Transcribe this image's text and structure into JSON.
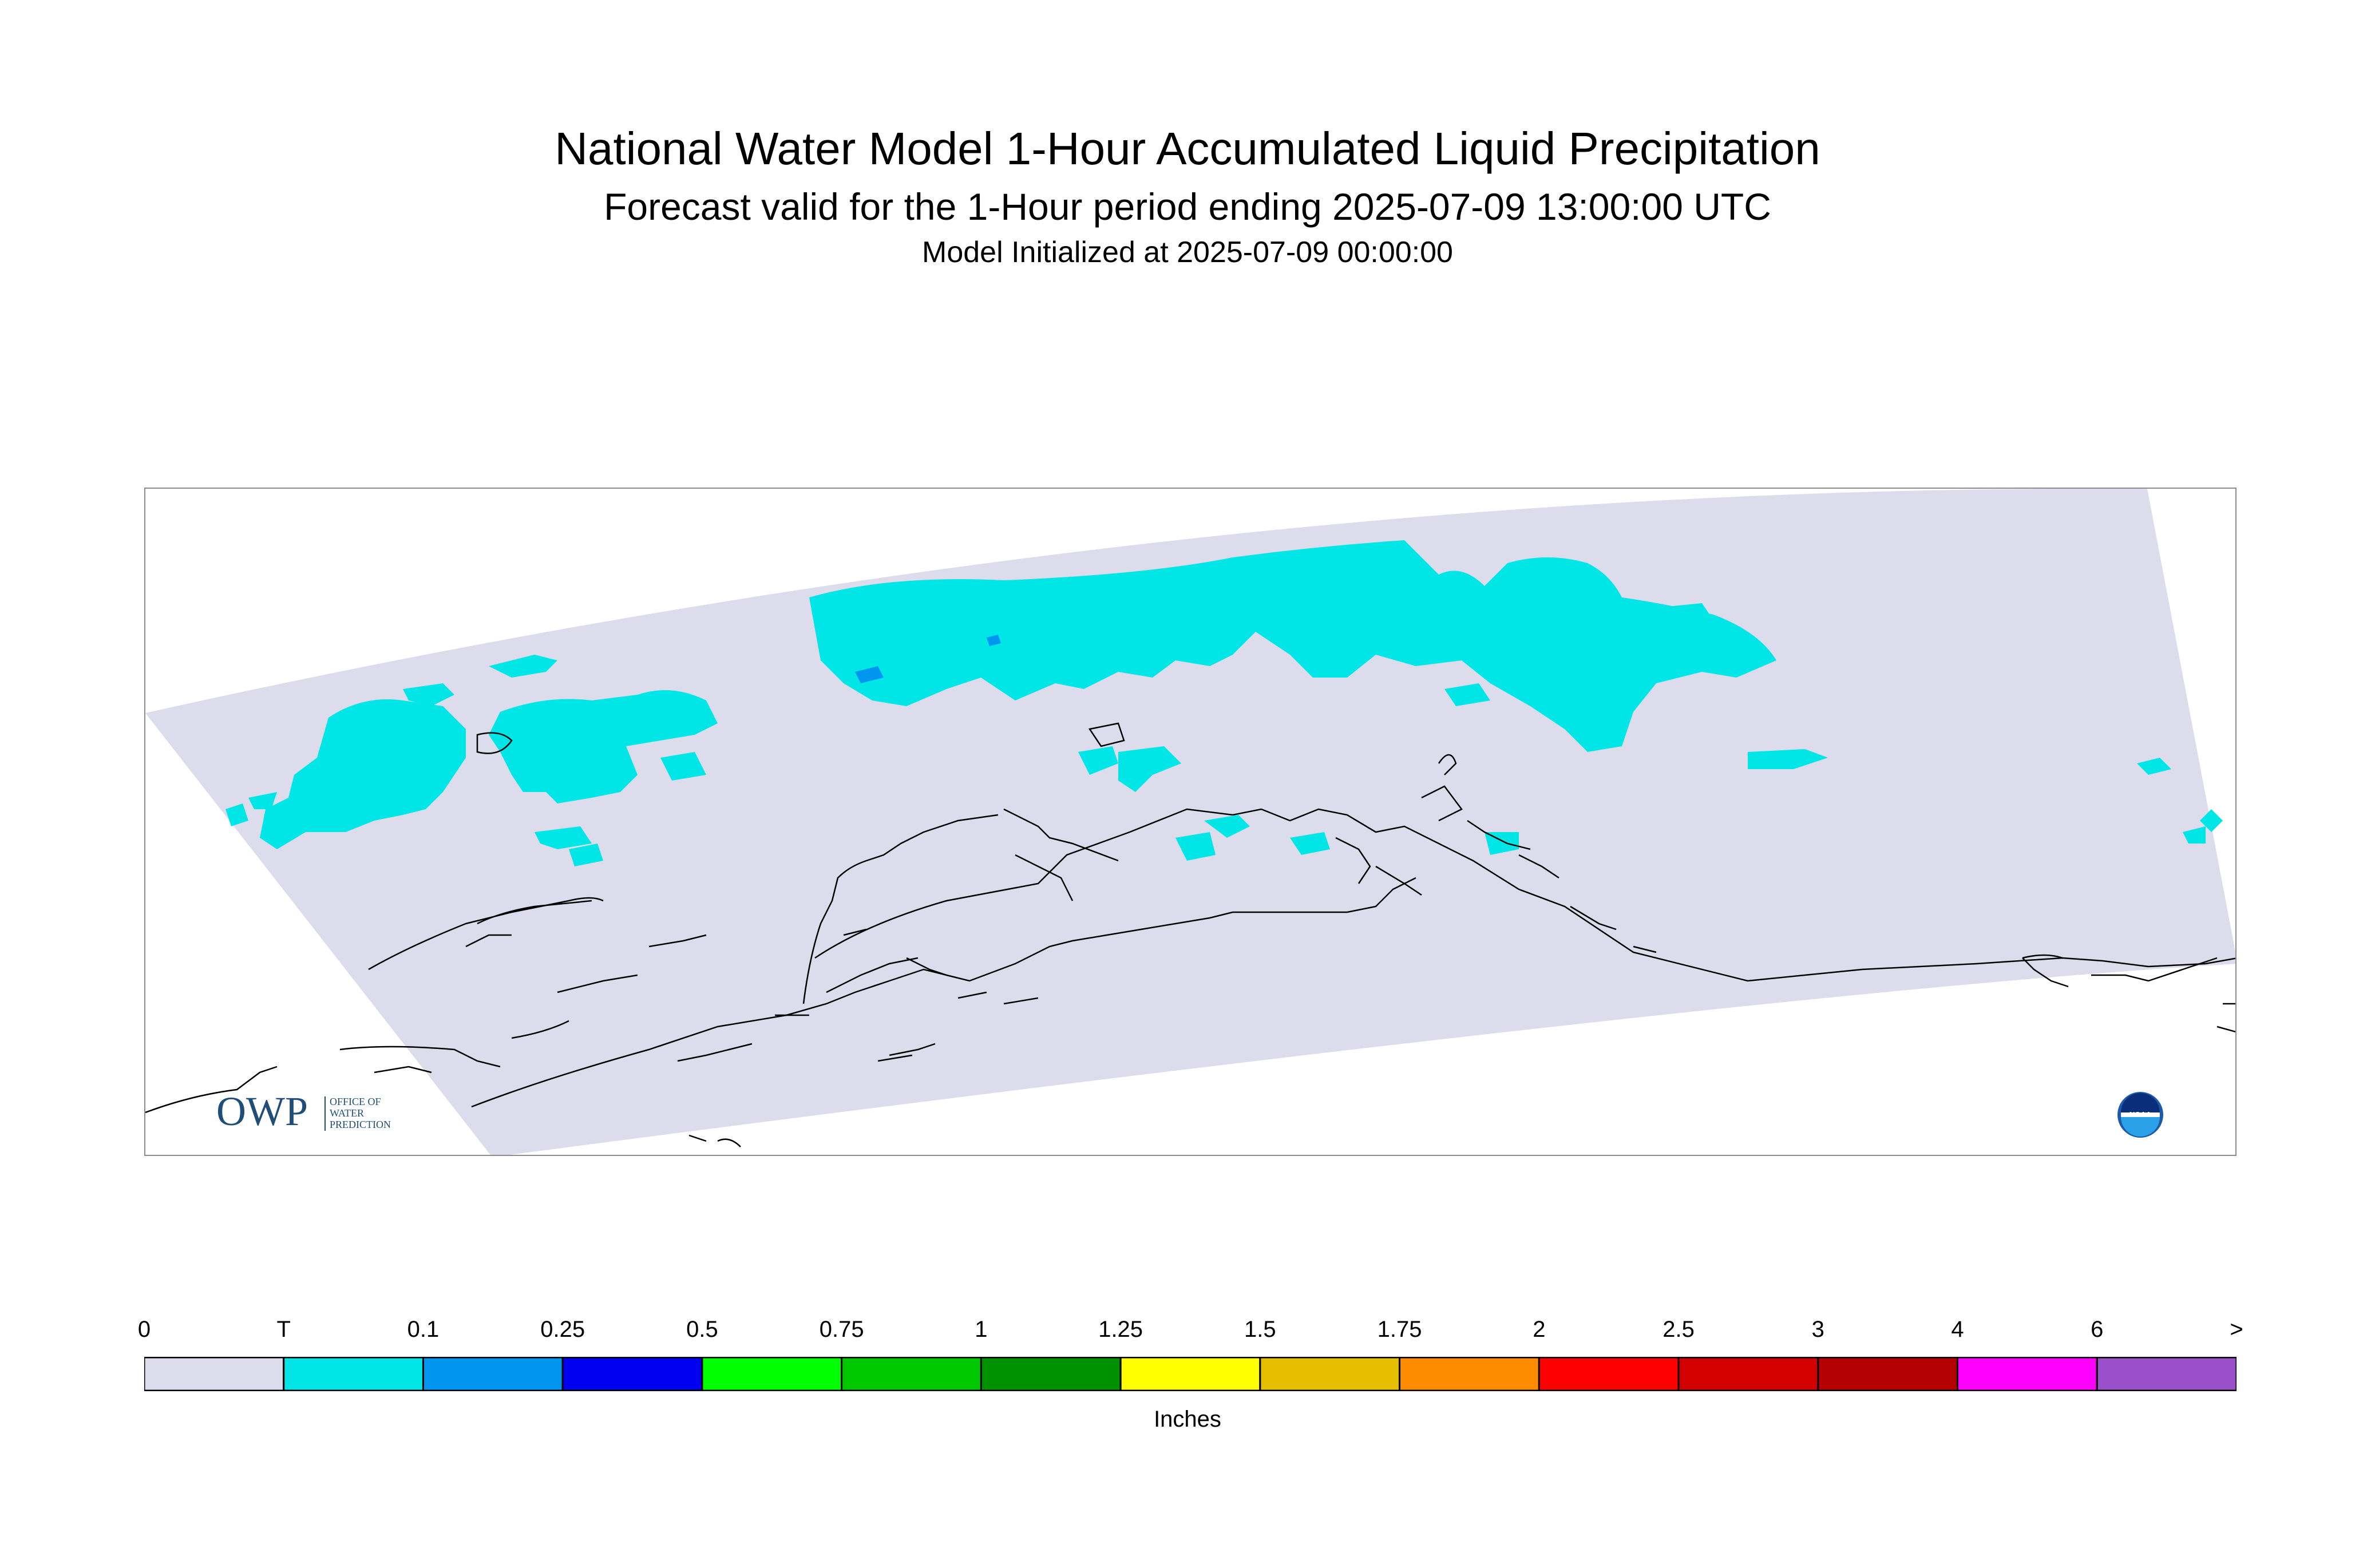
{
  "title": {
    "line1": "National Water Model 1-Hour Accumulated Liquid Precipitation",
    "line2": "Forecast valid for the 1-Hour period ending 2025-07-09 13:00:00 UTC",
    "line3": "Model Initialized at 2025-07-09 00:00:00"
  },
  "map": {
    "region": "Alaska",
    "domain_color": "#dcdcec",
    "precip_color": "#00e6e6",
    "heavier_precip_color": "#0096f0",
    "coastline_color": "#000000"
  },
  "logos": {
    "owp": {
      "mark": "OWP",
      "line1": "OFFICE OF",
      "line2": "WATER",
      "line3": "PREDICTION"
    },
    "noaa": {
      "text": "NOAA"
    }
  },
  "legend": {
    "labels": [
      "0",
      "T",
      "0.1",
      "0.25",
      "0.5",
      "0.75",
      "1",
      "1.25",
      "1.5",
      "1.75",
      "2",
      "2.5",
      "3",
      "4",
      "6",
      ">"
    ],
    "colors": [
      "#dcdcec",
      "#00e6e6",
      "#0096f0",
      "#0000f0",
      "#00ff00",
      "#00c800",
      "#009100",
      "#ffff00",
      "#e6be00",
      "#ff8c00",
      "#ff0000",
      "#d20000",
      "#b40000",
      "#ff00ff",
      "#9a50c8"
    ],
    "units": "Inches"
  }
}
